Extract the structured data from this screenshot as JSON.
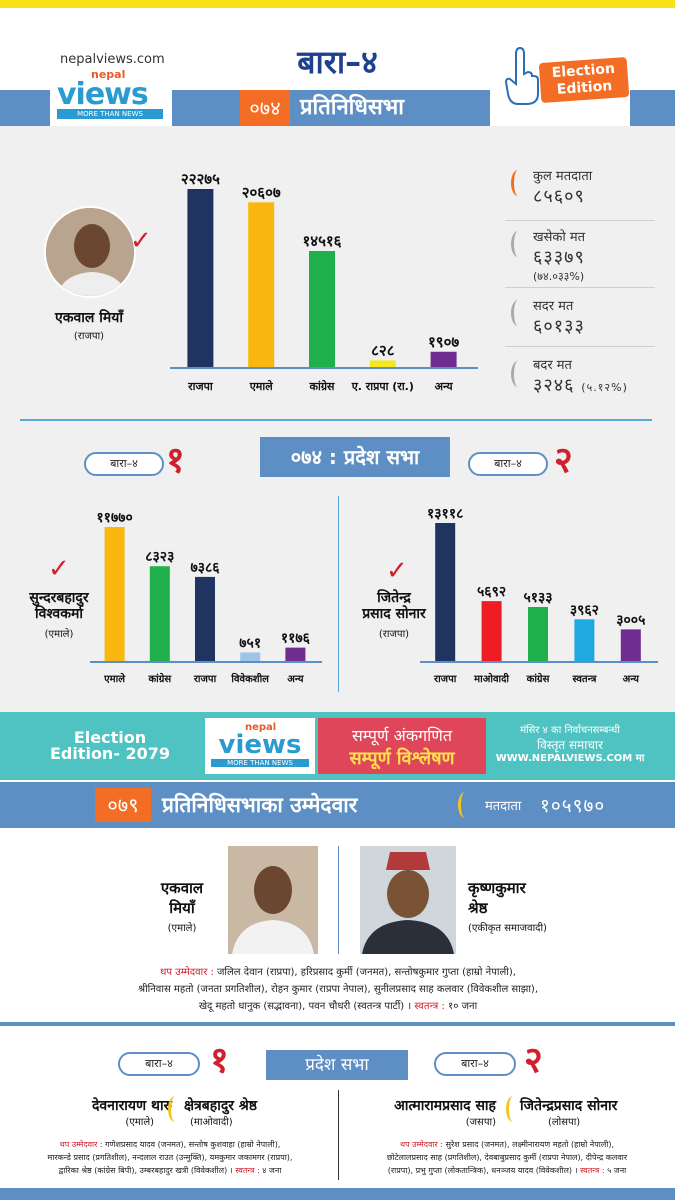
{
  "header": {
    "site": "nepalviews.com",
    "logo_nepal": "nepal",
    "logo_views": "views",
    "logo_tagline": "MORE THAN NEWS",
    "title": "बारा–४",
    "year": "०७४",
    "section": "प्रतिनिधिसभा",
    "badge_line1": "Election",
    "badge_line2": "Edition"
  },
  "federal_2074": {
    "winner_name": "एकवाल मियाँ",
    "winner_party": "(राजपा)",
    "chart_data": {
      "type": "bar",
      "categories": [
        "राजपा",
        "एमाले",
        "कांग्रेस",
        "ए. राप्रपा (रा.)",
        "अन्य"
      ],
      "value_labels": [
        "२२२७५",
        "२०६०७",
        "१४५१६",
        "८२८",
        "१९०७"
      ],
      "values": [
        22275,
        20607,
        14516,
        828,
        1907
      ],
      "colors": [
        "#1f3461",
        "#f9b70f",
        "#20b04b",
        "#f5e623",
        "#6f2c91"
      ]
    },
    "stats": [
      {
        "label": "कुल मतदाता",
        "value": "८५६०९",
        "sub": ""
      },
      {
        "label": "खसेको मत",
        "value": "६३३७९",
        "sub": "(७४.०३३%)"
      },
      {
        "label": "सदर मत",
        "value": "६०१३३",
        "sub": ""
      },
      {
        "label": "बदर मत",
        "value": "३२४६",
        "sub": "(५.१२%)"
      }
    ]
  },
  "pradesh_2074": {
    "title": "०७४ : प्रदेश सभा",
    "left": {
      "pill": "बारा–४",
      "number": "१",
      "winner_name_1": "सुन्दरबहादुर",
      "winner_name_2": "विश्वकर्मा",
      "winner_party": "(एमाले)",
      "chart_data": {
        "type": "bar",
        "categories": [
          "एमाले",
          "कांग्रेस",
          "राजपा",
          "विवेकशील",
          "अन्य"
        ],
        "value_labels": [
          "११७७०",
          "८३२३",
          "७३८६",
          "७५१",
          "११७६"
        ],
        "values": [
          11770,
          8323,
          7386,
          751,
          1176
        ],
        "colors": [
          "#f9b70f",
          "#20b04b",
          "#1f3461",
          "#9ec5e6",
          "#6f2c91"
        ]
      }
    },
    "right": {
      "pill": "बारा–४",
      "number": "२",
      "winner_name_1": "जितेन्द्र",
      "winner_name_2": "प्रसाद सोनार",
      "winner_party": "(राजपा)",
      "chart_data": {
        "type": "bar",
        "categories": [
          "राजपा",
          "माओवादी",
          "कांग्रेस",
          "स्वतन्त्र",
          "अन्य"
        ],
        "value_labels": [
          "१३११८",
          "५६९२",
          "५१३३",
          "३९६२",
          "३००५"
        ],
        "values": [
          13118,
          5692,
          5133,
          3962,
          3005
        ],
        "colors": [
          "#1f3461",
          "#ee1c25",
          "#20b04b",
          "#1ea9e1",
          "#6f2c91"
        ]
      }
    }
  },
  "banner": {
    "left_1": "Election",
    "left_2": "Edition- 2079",
    "mid_1": "सम्पूर्ण अंकगणित",
    "mid_2": "सम्पूर्ण विश्लेषण",
    "right_1": "मंसिर ४ का निर्वाचनसम्बन्धी",
    "right_2": "विस्तृत समाचार",
    "right_3": "WWW.NEPALVIEWS.COM मा"
  },
  "federal_2079": {
    "year": "०७९",
    "title": "प्रतिनिधिसभाका उम्मेदवार",
    "voters_label": "मतदाता",
    "voters": "१०५९७०",
    "cand1_name_1": "एकवाल",
    "cand1_name_2": "मियाँ",
    "cand1_party": "(एमाले)",
    "cand2_name_1": "कृष्णकुमार",
    "cand2_name_2": "श्रेष्ठ",
    "cand2_party": "(एकीकृत समाजवादी)",
    "others_label": "थप उम्मेदवार :",
    "others_1": "जलिल देवान (राप्रपा), हरिप्रसाद कुर्मी (जनमत), सन्तोषकुमार गुप्ता (हाम्रो नेपाली),",
    "others_2": "श्रीनिवास महतो (जनता प्रगतिशील), रोहन कुमार (राप्रपा नेपाल), सुनीलप्रसाद साह कलवार (विवेकशील साझा),",
    "others_3": "खेदू महतो धानुक (सद्भावना), पवन चौधरी (स्वतन्त्र पार्टी) ।",
    "independent_label": "स्वतन्त्र :",
    "independent_count": "१० जना"
  },
  "pradesh_2079": {
    "title": "प्रदेश सभा",
    "left": {
      "pill": "बारा–४",
      "number": "१",
      "cand1_name": "देवनारायण थारु",
      "cand1_party": "(एमाले)",
      "cand2_name": "क्षेत्रबहादुर श्रेष्ठ",
      "cand2_party": "(माओवादी)",
      "others_label": "थप उम्मेदवार :",
      "others_1": "गणेशप्रसाद यादव (जनमत), सन्तोष कुशवाहा (हाम्रो नेपाली),",
      "others_2": "मारकन्डे प्रसाद (प्रगतिशील), नन्दलाल राउत (उन्मुक्ति), यमकुमार जकामगर (राप्रपा),",
      "others_3": "द्वारिका श्रेष्ठ (कांग्रेस बिपी), उम्बरबहादुर खत्री (विवेकशील) ।",
      "independent_label": "स्वतन्त्र :",
      "independent_count": "४ जना"
    },
    "right": {
      "pill": "बारा–४",
      "number": "२",
      "cand1_name": "आत्मारामप्रसाद साह",
      "cand1_party": "(जसपा)",
      "cand2_name": "जितेन्द्रप्रसाद सोनार",
      "cand2_party": "(लोसपा)",
      "others_label": "थप उम्मेदवार :",
      "others_1": "सुरेश प्रसाद (जनमत), लक्ष्मीनारायण महतो (हाम्रो नेपाली),",
      "others_2": "छोटेलालप्रसाद साह (प्रगतिशील), देवबाबुप्रसाद कुर्मी (राप्रपा नेपाल), दीपेन्द्र कलवार",
      "others_3": "(राप्रपा), प्रभु गुप्ता (लोकतान्त्रिक), धनञ्जय यादव (विवेकशील) ।",
      "independent_label": "स्वतन्त्र :",
      "independent_count": "५ जना"
    }
  }
}
